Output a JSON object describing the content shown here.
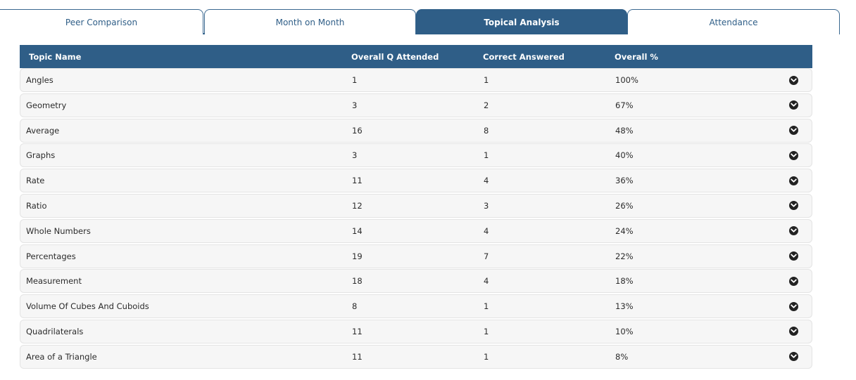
{
  "tabs": [
    {
      "label": "Peer Comparison",
      "active": false
    },
    {
      "label": "Month on Month",
      "active": false
    },
    {
      "label": "Topical Analysis",
      "active": true
    },
    {
      "label": "Attendance",
      "active": false
    }
  ],
  "table": {
    "headers": [
      "Topic Name",
      "Overall Q Attended",
      "Correct Answered",
      "Overall %"
    ],
    "rows": [
      {
        "topic": "Angles",
        "attended": "1",
        "correct": "1",
        "percent": "100%"
      },
      {
        "topic": "Geometry",
        "attended": "3",
        "correct": "2",
        "percent": "67%"
      },
      {
        "topic": "Average",
        "attended": "16",
        "correct": "8",
        "percent": "48%"
      },
      {
        "topic": "Graphs",
        "attended": "3",
        "correct": "1",
        "percent": "40%"
      },
      {
        "topic": "Rate",
        "attended": "11",
        "correct": "4",
        "percent": "36%"
      },
      {
        "topic": "Ratio",
        "attended": "12",
        "correct": "3",
        "percent": "26%"
      },
      {
        "topic": "Whole Numbers",
        "attended": "14",
        "correct": "4",
        "percent": "24%"
      },
      {
        "topic": "Percentages",
        "attended": "19",
        "correct": "7",
        "percent": "22%"
      },
      {
        "topic": "Measurement",
        "attended": "18",
        "correct": "4",
        "percent": "18%"
      },
      {
        "topic": "Volume Of Cubes And Cuboids",
        "attended": "8",
        "correct": "1",
        "percent": "13%"
      },
      {
        "topic": "Quadrilaterals",
        "attended": "11",
        "correct": "1",
        "percent": "10%"
      },
      {
        "topic": "Area of a Triangle",
        "attended": "11",
        "correct": "1",
        "percent": "8%"
      }
    ],
    "row_icon": "chevron-down-circle-icon"
  },
  "colors": {
    "accent": "#2f5e87",
    "row_bg": "#f6f6f6"
  }
}
